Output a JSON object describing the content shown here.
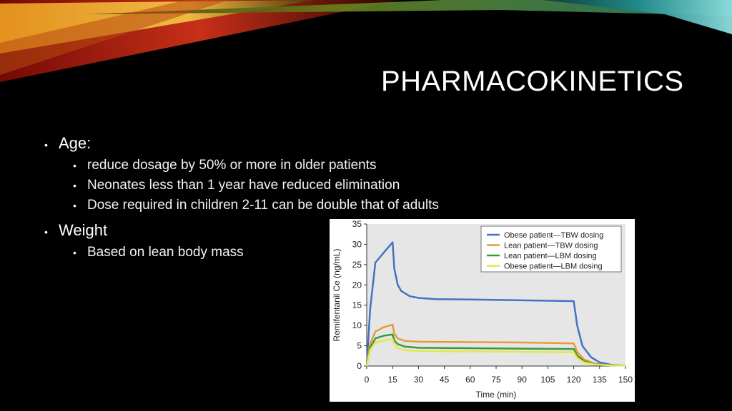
{
  "slide": {
    "title": "PHARMACOKINETICS",
    "bullets": [
      {
        "text": "Age:",
        "sub": [
          "reduce dosage by 50% or more in older patients",
          "Neonates less than 1 year have reduced elimination",
          "Dose required in children 2-11 can be double that of adults"
        ]
      },
      {
        "text": "Weight",
        "sub": [
          "Based on lean body mass"
        ]
      }
    ]
  },
  "chart_data": {
    "type": "line",
    "xlabel": "Time (min)",
    "ylabel": "Remifentanil Ce (ng/mL)",
    "xlim": [
      0,
      150
    ],
    "ylim": [
      0,
      35
    ],
    "xticks": [
      0,
      15,
      30,
      45,
      60,
      75,
      90,
      105,
      120,
      135,
      150
    ],
    "yticks": [
      0,
      5,
      10,
      15,
      20,
      25,
      30,
      35
    ],
    "grid": false,
    "legend": "top-right",
    "series": [
      {
        "name": "Obese patient—TBW dosing",
        "color": "#4472c4",
        "points": [
          [
            0,
            0
          ],
          [
            2,
            14
          ],
          [
            5,
            25.5
          ],
          [
            10,
            28
          ],
          [
            15,
            30.5
          ],
          [
            16,
            24
          ],
          [
            18,
            20
          ],
          [
            20,
            18.5
          ],
          [
            25,
            17.2
          ],
          [
            30,
            16.8
          ],
          [
            40,
            16.5
          ],
          [
            60,
            16.4
          ],
          [
            90,
            16.2
          ],
          [
            120,
            16
          ],
          [
            122,
            10
          ],
          [
            125,
            5
          ],
          [
            130,
            2.2
          ],
          [
            135,
            0.9
          ],
          [
            142,
            0.3
          ],
          [
            150,
            0.1
          ]
        ]
      },
      {
        "name": "Lean patient—TBW dosing",
        "color": "#e69a3c",
        "points": [
          [
            0,
            0
          ],
          [
            2,
            5.5
          ],
          [
            5,
            8.5
          ],
          [
            10,
            9.6
          ],
          [
            15,
            10.2
          ],
          [
            16,
            8
          ],
          [
            18,
            6.8
          ],
          [
            22,
            6.2
          ],
          [
            30,
            6
          ],
          [
            60,
            5.9
          ],
          [
            90,
            5.8
          ],
          [
            120,
            5.6
          ],
          [
            122,
            3.5
          ],
          [
            126,
            1.6
          ],
          [
            132,
            0.6
          ],
          [
            140,
            0.2
          ],
          [
            150,
            0.1
          ]
        ]
      },
      {
        "name": "Lean patient—LBM dosing",
        "color": "#3a9a3a",
        "points": [
          [
            0,
            0
          ],
          [
            2,
            4.5
          ],
          [
            5,
            6.8
          ],
          [
            10,
            7.5
          ],
          [
            15,
            7.8
          ],
          [
            16,
            6.3
          ],
          [
            18,
            5.4
          ],
          [
            22,
            4.8
          ],
          [
            30,
            4.5
          ],
          [
            60,
            4.4
          ],
          [
            90,
            4.3
          ],
          [
            120,
            4.2
          ],
          [
            122,
            2.6
          ],
          [
            126,
            1.2
          ],
          [
            132,
            0.5
          ],
          [
            140,
            0.2
          ],
          [
            150,
            0.1
          ]
        ]
      },
      {
        "name": "Obese patient—LBM dosing",
        "color": "#e8e64c",
        "points": [
          [
            0,
            0
          ],
          [
            2,
            4
          ],
          [
            5,
            5.8
          ],
          [
            10,
            6.3
          ],
          [
            15,
            6.6
          ],
          [
            16,
            5.3
          ],
          [
            18,
            4.4
          ],
          [
            22,
            3.9
          ],
          [
            30,
            3.7
          ],
          [
            60,
            3.6
          ],
          [
            90,
            3.5
          ],
          [
            120,
            3.4
          ],
          [
            122,
            2
          ],
          [
            126,
            0.9
          ],
          [
            132,
            0.4
          ],
          [
            140,
            0.2
          ],
          [
            150,
            0.1
          ]
        ]
      }
    ]
  }
}
